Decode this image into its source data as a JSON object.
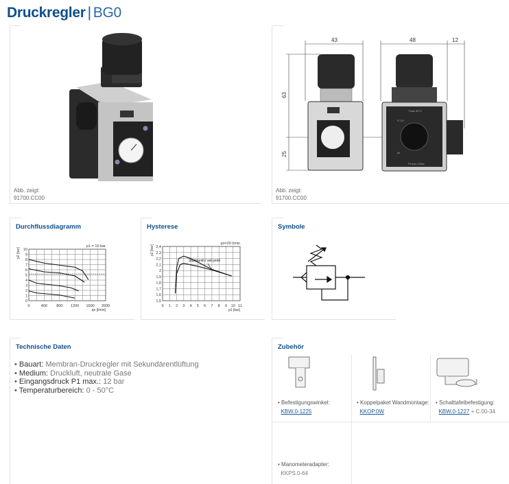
{
  "header": {
    "title": "Druckregler",
    "separator": "|",
    "subtitle": "BG0"
  },
  "product_image": {
    "caption_label": "Abb. zeigt:",
    "caption_code": "91700.CC00"
  },
  "drawing": {
    "caption_label": "Abb. zeigt:",
    "caption_code": "91700.CC00",
    "dims": {
      "width_front": "43",
      "width_side": "48",
      "width_gauge": "12",
      "height_upper": "63",
      "height_lower": "25"
    },
    "labels": {
      "tmax": "Tmax 50°C",
      "pmax": "P1max 12bar",
      "port": "G 1/4",
      "in": "IN"
    }
  },
  "flow_panel": {
    "title": "Durchflussdiagramm"
  },
  "hyst_panel": {
    "title": "Hysterese"
  },
  "symbol_panel": {
    "title": "Symbole"
  },
  "chart_data": [
    {
      "type": "line",
      "title": "",
      "annotation": "p1 = 10 bar",
      "xlabel": "qn [l/min]",
      "ylabel": "p2 [bar]",
      "xlim": [
        0,
        2000
      ],
      "ylim": [
        0,
        10
      ],
      "xticks": [
        "0",
        "400",
        "800",
        "1200",
        "1600",
        "2000"
      ],
      "yticks": [
        "0",
        "1",
        "2",
        "3",
        "4",
        "5",
        "6",
        "7",
        "8",
        "9",
        "10"
      ],
      "grid": true,
      "reference_line": {
        "y": 5.2,
        "style": "dashed"
      },
      "series": [
        {
          "points": [
            [
              0,
              8
            ],
            [
              400,
              7.3
            ],
            [
              800,
              6.9
            ],
            [
              1200,
              6.5
            ],
            [
              1400,
              5.8
            ],
            [
              1550,
              4.1
            ]
          ]
        },
        {
          "points": [
            [
              0,
              6.2
            ],
            [
              400,
              5.6
            ],
            [
              800,
              5.4
            ],
            [
              1200,
              4.8
            ],
            [
              1450,
              3.6
            ]
          ]
        },
        {
          "points": [
            [
              0,
              4
            ],
            [
              200,
              3.4
            ],
            [
              800,
              2.9
            ],
            [
              1100,
              2.5
            ],
            [
              1300,
              1.9
            ]
          ]
        },
        {
          "points": [
            [
              0,
              1.9
            ],
            [
              200,
              1.5
            ],
            [
              800,
              1.1
            ],
            [
              1200,
              0.5
            ]
          ]
        }
      ]
    },
    {
      "type": "line",
      "title": "",
      "annotation": "qn=20 l/min",
      "xlabel": "p1 [bar]",
      "ylabel": "p2 [bar]",
      "xlim": [
        0,
        11
      ],
      "ylim": [
        1.5,
        2.4
      ],
      "xticks": [
        "0",
        "1",
        "2",
        "3",
        "4",
        "5",
        "6",
        "7",
        "8",
        "9",
        "10",
        "11"
      ],
      "yticks": [
        "1,5",
        "1,6",
        "1,7",
        "1,8",
        "1,9",
        "2",
        "2,1",
        "2,2",
        "2,3",
        "2,4"
      ],
      "grid": true,
      "point_label": "Startpunkt / set point",
      "series": [
        {
          "points": [
            [
              1.8,
              1.62
            ],
            [
              2,
              2.05
            ],
            [
              2.3,
              2.2
            ],
            [
              3,
              2.24
            ],
            [
              4,
              2.2
            ],
            [
              6,
              2.08
            ],
            [
              7,
              2.02
            ],
            [
              9.8,
              1.91
            ]
          ]
        },
        {
          "points": [
            [
              1.8,
              1.62
            ],
            [
              2,
              1.95
            ],
            [
              2.5,
              2.1
            ],
            [
              3,
              2.12
            ],
            [
              5,
              2.07
            ],
            [
              7,
              2.01
            ],
            [
              9.8,
              1.91
            ]
          ]
        }
      ]
    }
  ],
  "tech": {
    "title": "Technische Daten",
    "items": [
      {
        "key": "Bauart:",
        "value": "Membran-Druckregler mit Sekundärentlüftung"
      },
      {
        "key": "Medium:",
        "value": "Druckluft, neutrale Gase"
      },
      {
        "key": "Eingangsdruck P1 max.:",
        "value": "12 bar"
      },
      {
        "key": "Temperaturbereich:",
        "value": "0 - 50°C"
      }
    ]
  },
  "accessories": {
    "title": "Zubehör",
    "items": [
      {
        "label": "Befestigungswinkel:",
        "code": "KBW.0-1225"
      },
      {
        "label": "Koppelpaket Wandmontage:",
        "code": "KKOP.0W"
      },
      {
        "label": "Schalttafelbefestigung:",
        "code": "KBW.0-1227",
        "extra": "+ C.00-34"
      },
      {
        "label": "Manometeradapter:",
        "code": "KKPS.0-64"
      }
    ]
  },
  "colors": {
    "brand": "#0e4f8c",
    "link": "#1a5a96",
    "border": "#e2e2e2"
  }
}
